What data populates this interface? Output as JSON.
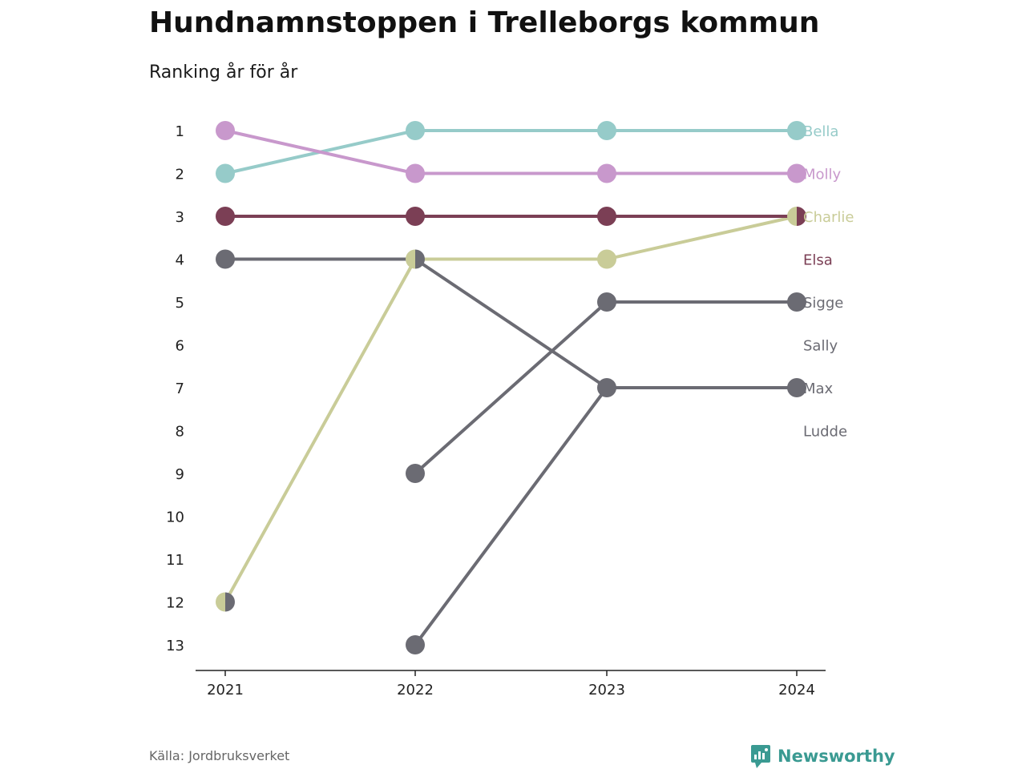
{
  "header": {
    "title": "Hundnamnstoppen i Trelleborgs kommun",
    "subtitle": "Ranking år för år"
  },
  "footer": {
    "source": "Källa: Jordbruksverket",
    "brand": "Newsworthy",
    "brand_color": "#3a9a92"
  },
  "chart_data": {
    "type": "line",
    "title": "Hundnamnstoppen i Trelleborgs kommun",
    "subtitle": "Ranking år för år",
    "x": [
      "2021",
      "2022",
      "2023",
      "2024"
    ],
    "y_ticks": [
      1,
      2,
      3,
      4,
      5,
      6,
      7,
      8,
      9,
      10,
      11,
      12,
      13
    ],
    "ylim": [
      1,
      13
    ],
    "y_reversed": true,
    "grid": false,
    "legend": "direct labels at right end",
    "series": [
      {
        "name": "Bella",
        "color": "#96cbc9",
        "values": [
          2,
          1,
          1,
          1
        ]
      },
      {
        "name": "Molly",
        "color": "#c898cc",
        "values": [
          1,
          2,
          2,
          2
        ]
      },
      {
        "name": "Charlie",
        "color": "#c9cc98",
        "values": [
          12,
          4,
          4,
          3
        ]
      },
      {
        "name": "Elsa",
        "color": "#7b3f55",
        "values": [
          3,
          3,
          3,
          3
        ]
      },
      {
        "name": "Sigge",
        "color": "#6b6b73",
        "values": [
          null,
          9,
          5,
          5
        ]
      },
      {
        "name": "Sally",
        "color": "#6b6b73",
        "values": [
          12,
          null,
          null,
          null
        ]
      },
      {
        "name": "Max",
        "color": "#6b6b73",
        "values": [
          4,
          4,
          7,
          7
        ]
      },
      {
        "name": "Ludde",
        "color": "#6b6b73",
        "values": [
          null,
          13,
          7,
          null
        ]
      }
    ],
    "end_label_ranks": [
      1,
      2,
      3,
      4,
      5,
      6,
      7,
      8
    ],
    "end_label_colors": [
      "#96cbc9",
      "#c898cc",
      "#c9cc98",
      "#7b3f55",
      "#6b6b73",
      "#6b6b73",
      "#6b6b73",
      "#6b6b73"
    ]
  }
}
